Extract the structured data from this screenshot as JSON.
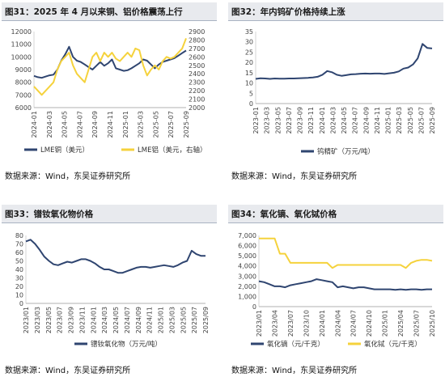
{
  "panels": [
    {
      "figure_title": "图31：2025 年 4 月以来铜、铝价格震荡上行",
      "source": "数据来源：Wind，东吴证券研究所"
    },
    {
      "figure_title": "图32：年内钨矿价格持续上涨",
      "source": "数据来源：Wind，东吴证券研究所"
    },
    {
      "figure_title": "图33：镨钕氧化物价格",
      "source": "数据来源：Wind，东吴证券研究所"
    },
    {
      "figure_title": "图34：氧化镝、氧化铽价格",
      "source": "数据来源：Wind，东吴证券研究所"
    }
  ],
  "colors": {
    "navy": "#2f4570",
    "gold": "#f5d23c"
  },
  "chart_data": [
    {
      "type": "line",
      "title": "",
      "xlabel": "",
      "ylabel": "",
      "y_left_range": [
        6000,
        12000
      ],
      "y_left_ticks": [
        "12000",
        "11000",
        "10000",
        "9000",
        "8000",
        "7000",
        "6000"
      ],
      "y_right_range": [
        2000,
        2900
      ],
      "y_right_ticks": [
        "2900",
        "2800",
        "2700",
        "2600",
        "2500",
        "2400",
        "2300",
        "2200",
        "2100",
        "2000"
      ],
      "x_ticks": [
        "2024-01",
        "2024-03",
        "2024-05",
        "2024-07",
        "2024-09",
        "2024-11",
        "2025-01",
        "2025-03",
        "2025-05",
        "2025-07",
        "2025-09"
      ],
      "legend": "bottom",
      "series": [
        {
          "name": "LME铜（美元）",
          "axis": "left",
          "color": "#2f4570",
          "values": [
            8500,
            8400,
            8350,
            8450,
            8550,
            8600,
            9000,
            9700,
            10200,
            10800,
            10000,
            9700,
            9600,
            9400,
            9200,
            9000,
            9300,
            9600,
            9300,
            9500,
            9800,
            9100,
            9000,
            8900,
            8950,
            9100,
            9300,
            9500,
            9800,
            9700,
            9400,
            9100,
            9400,
            9600,
            9700,
            9800,
            9900,
            10100,
            10300,
            10500
          ]
        },
        {
          "name": "LME铝（美元，右轴）",
          "axis": "right",
          "color": "#f5d23c",
          "values": [
            2250,
            2200,
            2150,
            2200,
            2250,
            2300,
            2450,
            2550,
            2600,
            2650,
            2500,
            2400,
            2350,
            2300,
            2450,
            2600,
            2650,
            2550,
            2650,
            2600,
            2650,
            2580,
            2550,
            2600,
            2650,
            2600,
            2700,
            2680,
            2500,
            2380,
            2450,
            2500,
            2450,
            2550,
            2600,
            2580,
            2600,
            2650,
            2700,
            2820
          ]
        }
      ]
    },
    {
      "type": "line",
      "title": "",
      "xlabel": "",
      "ylabel": "",
      "ylim": [
        0,
        35
      ],
      "y_ticks": [
        "35",
        "30",
        "25",
        "20",
        "15",
        "10",
        "5",
        "0"
      ],
      "x_ticks": [
        "2023-01",
        "2023-03",
        "2023-05",
        "2023-07",
        "2023-09",
        "2023-11",
        "2024-01",
        "2024-03",
        "2024-05",
        "2024-07",
        "2024-09",
        "2024-11",
        "2025-01",
        "2025-03",
        "2025-05",
        "2025-07",
        "2025-09"
      ],
      "legend": "bottom",
      "series": [
        {
          "name": "钨精矿（万元/吨）",
          "color": "#2f4570",
          "values": [
            12,
            12.3,
            12.2,
            12.0,
            12.2,
            12.1,
            12.1,
            12.2,
            12.2,
            12.3,
            12.4,
            12.5,
            12.7,
            13.0,
            14.0,
            15.8,
            15.2,
            14.0,
            13.5,
            13.8,
            14.2,
            14.3,
            14.5,
            14.6,
            14.5,
            14.6,
            14.6,
            14.4,
            14.7,
            15.0,
            15.6,
            17.0,
            17.5,
            19.0,
            22.0,
            29.0,
            27.0,
            26.8
          ]
        }
      ]
    },
    {
      "type": "line",
      "title": "",
      "xlabel": "",
      "ylabel": "",
      "ylim": [
        0,
        80
      ],
      "y_ticks": [
        "80",
        "70",
        "60",
        "50",
        "40",
        "30",
        "20",
        "10",
        "0"
      ],
      "x_ticks": [
        "2023/01",
        "2023/03",
        "2023/05",
        "2023/07",
        "2023/09",
        "2023/11",
        "2024/01",
        "2024/03",
        "2024/05",
        "2024/07",
        "2024/09",
        "2024/11",
        "2025/01",
        "2025/03",
        "2025/05",
        "2025/07",
        "2025/09"
      ],
      "legend": "bottom",
      "series": [
        {
          "name": "镨钕氧化物（万元/吨）",
          "color": "#2f4570",
          "values": [
            73,
            75,
            70,
            63,
            55,
            50,
            46,
            45,
            47,
            49,
            48,
            50,
            52,
            52,
            50,
            47,
            43,
            40,
            40,
            38,
            36,
            36,
            38,
            40,
            42,
            43,
            43,
            42,
            43,
            44,
            45,
            44,
            43,
            45,
            48,
            50,
            62,
            58,
            56,
            56
          ]
        }
      ]
    },
    {
      "type": "line",
      "title": "",
      "xlabel": "",
      "ylabel": "",
      "ylim": [
        0,
        7000
      ],
      "y_ticks": [
        "7,000",
        "6,000",
        "5,000",
        "4,000",
        "3,000",
        "2,000",
        "1,000",
        "0"
      ],
      "x_ticks": [
        "2023/01",
        "2023/04",
        "2023/07",
        "2023/10",
        "2024/01",
        "2024/04",
        "2024/07",
        "2024/10",
        "2025/01",
        "2025/04",
        "2025/07",
        "2025/10"
      ],
      "legend": "bottom",
      "series": [
        {
          "name": "氧化镝（元/千克）",
          "color": "#2f4570",
          "values": [
            2500,
            2400,
            2200,
            2000,
            2000,
            1900,
            2100,
            2200,
            2300,
            2400,
            2500,
            2700,
            2600,
            2500,
            2400,
            1900,
            2000,
            1900,
            1800,
            1900,
            1900,
            1800,
            1700,
            1700,
            1700,
            1700,
            1650,
            1700,
            1650,
            1700,
            1700,
            1650,
            1700,
            1700
          ]
        },
        {
          "name": "氧化铽（元/千克）",
          "color": "#f5d23c",
          "values": [
            6700,
            6700,
            6700,
            6700,
            5200,
            5200,
            4300,
            4300,
            4300,
            4300,
            4300,
            4300,
            4300,
            4300,
            3800,
            4100,
            4100,
            4100,
            4100,
            4100,
            4100,
            4100,
            4100,
            4100,
            4100,
            4100,
            4100,
            4100,
            3800,
            4300,
            4500,
            4600,
            4600,
            4500
          ]
        }
      ]
    }
  ]
}
